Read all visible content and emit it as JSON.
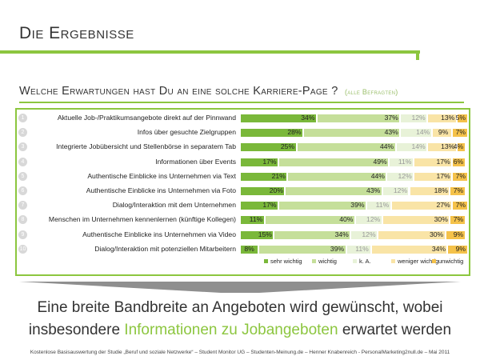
{
  "slide": {
    "title": "Die Ergebnisse",
    "question": "Welche Erwartungen hast Du an eine solche Karriere-Page ?",
    "question_sub": "(alle Befragten)",
    "conclusion_line1": "Eine breite Bandbreite an Angeboten wird gewünscht, wobei",
    "conclusion_line2_pre": "insbesondere ",
    "conclusion_line2_highlight": "Informationen zu Jobangeboten",
    "conclusion_line2_post": " erwartet werden",
    "footer": "Kostenlose Basisauswertung der Studie „Beruf und soziale Netzwerke“ – Student Monitor UG – Studenten-Meinung.de – Henner Knabenreich - PersonalMarketing2null.de – Mai 2011"
  },
  "colors": {
    "accent": "#8cc63f",
    "sehr_wichtig": "#7ab83a",
    "wichtig": "#c5df9a",
    "k_a": "#e8f2d8",
    "weniger_wichtig": "#f9e4a6",
    "unwichtig": "#f5c24a"
  },
  "chart_data": {
    "type": "bar",
    "orientation": "horizontal",
    "stacked": true,
    "title": "Welche Erwartungen hast Du an eine solche Karriere-Page ?",
    "xlim": [
      0,
      100
    ],
    "unit": "%",
    "legend_position": "bottom",
    "categories": [
      "Aktuelle Job-/Praktikumsangebote direkt auf der Pinnwand",
      "Infos über gesuchte Zielgruppen",
      "Integrierte Jobübersicht und Stellenbörse in separatem Tab",
      "Informationen über Events",
      "Authentische Einblicke ins Unternehmen via Text",
      "Authentische Einblicke ins Unternehmen via Foto",
      "Dialog/Interaktion mit dem Unternehmen",
      "Menschen im Unternehmen kennenlernen (künftige Kollegen)",
      "Authentische Einblicke ins Unternehmen via Video",
      "Dialog/Interaktion mit potenziellen Mitarbeitern"
    ],
    "row_numbers": [
      "1",
      "2",
      "3",
      "4",
      "5",
      "6",
      "7",
      "8",
      "9",
      "10"
    ],
    "series": [
      {
        "name": "sehr wichtig",
        "values": [
          34,
          28,
          25,
          17,
          21,
          20,
          17,
          11,
          15,
          8
        ]
      },
      {
        "name": "wichtig",
        "values": [
          37,
          43,
          44,
          49,
          44,
          43,
          39,
          40,
          34,
          39
        ]
      },
      {
        "name": "k. A.",
        "values": [
          12,
          14,
          14,
          11,
          12,
          12,
          11,
          12,
          12,
          11
        ]
      },
      {
        "name": "weniger wichtig",
        "values": [
          13,
          9,
          13,
          17,
          17,
          18,
          27,
          30,
          30,
          34
        ]
      },
      {
        "name": "unwichtig",
        "values": [
          5,
          7,
          4,
          6,
          7,
          7,
          7,
          7,
          9,
          9
        ]
      }
    ]
  }
}
